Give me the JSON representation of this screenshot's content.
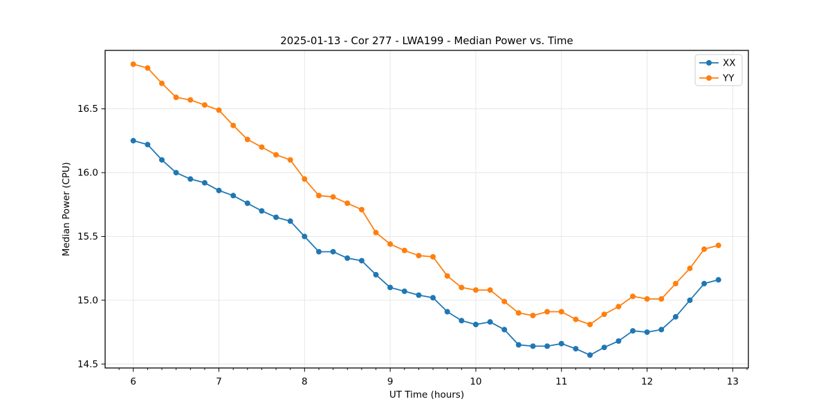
{
  "chart_data": {
    "type": "line",
    "title": "2025-01-13 - Cor 277 - LWA199 - Median Power vs. Time",
    "xlabel": "UT Time (hours)",
    "ylabel": "Median Power (CPU)",
    "xlim": [
      5.671,
      13.183
    ],
    "ylim": [
      14.469,
      16.958
    ],
    "x_ticks": [
      6,
      7,
      8,
      9,
      10,
      11,
      12,
      13
    ],
    "x_tick_labels": [
      "6",
      "7",
      "8",
      "9",
      "10",
      "11",
      "12",
      "13"
    ],
    "x_minor_tick_step": 0.16667,
    "y_ticks": [
      14.5,
      15.0,
      15.5,
      16.0,
      16.5
    ],
    "y_tick_labels": [
      "14.5",
      "15.0",
      "15.5",
      "16.0",
      "16.5"
    ],
    "grid": true,
    "grid_color": "#e6e6e6",
    "spine_color": "#000000",
    "legend_position": "upper right",
    "legend_border_color": "#cccccc",
    "x": [
      6.0,
      6.167,
      6.333,
      6.5,
      6.667,
      6.833,
      7.0,
      7.167,
      7.333,
      7.5,
      7.667,
      7.833,
      8.0,
      8.167,
      8.333,
      8.5,
      8.667,
      8.833,
      9.0,
      9.167,
      9.333,
      9.5,
      9.667,
      9.833,
      10.0,
      10.167,
      10.333,
      10.5,
      10.667,
      10.833,
      11.0,
      11.167,
      11.333,
      11.5,
      11.667,
      11.833,
      12.0,
      12.167,
      12.333,
      12.5,
      12.667,
      12.833
    ],
    "series": [
      {
        "name": "XX",
        "color": "#1f77b4",
        "values": [
          16.25,
          16.22,
          16.1,
          16.0,
          15.95,
          15.92,
          15.86,
          15.82,
          15.76,
          15.7,
          15.65,
          15.62,
          15.5,
          15.38,
          15.38,
          15.33,
          15.31,
          15.2,
          15.1,
          15.07,
          15.04,
          15.02,
          14.91,
          14.84,
          14.81,
          14.83,
          14.77,
          14.65,
          14.64,
          14.64,
          14.66,
          14.62,
          14.57,
          14.63,
          14.68,
          14.76,
          14.75,
          14.77,
          14.87,
          15.0,
          15.13,
          15.16
        ]
      },
      {
        "name": "YY",
        "color": "#ff7f0e",
        "values": [
          16.85,
          16.82,
          16.7,
          16.59,
          16.57,
          16.53,
          16.49,
          16.37,
          16.26,
          16.2,
          16.14,
          16.1,
          15.95,
          15.82,
          15.81,
          15.76,
          15.71,
          15.53,
          15.44,
          15.39,
          15.35,
          15.34,
          15.19,
          15.1,
          15.08,
          15.08,
          14.99,
          14.9,
          14.88,
          14.91,
          14.91,
          14.85,
          14.81,
          14.89,
          14.95,
          15.03,
          15.01,
          15.01,
          15.13,
          15.25,
          15.4,
          15.43
        ]
      }
    ]
  }
}
